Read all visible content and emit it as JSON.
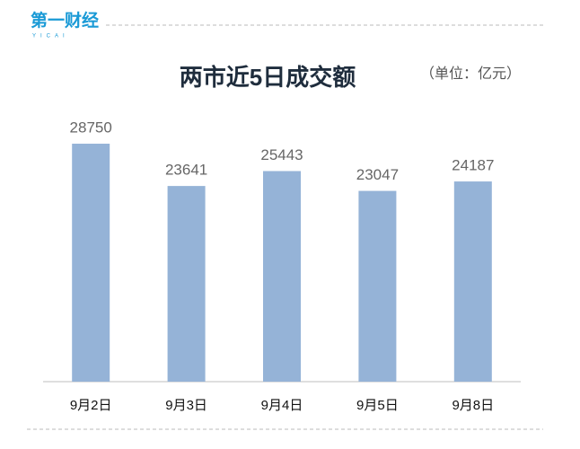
{
  "logo": "第一财经",
  "logo_sub": "YICAI",
  "chart_data": {
    "type": "bar",
    "title": "两市近5日成交额",
    "subtitle": "（单位：亿元）",
    "categories": [
      "9月2日",
      "9月3日",
      "9月4日",
      "9月5日",
      "9月8日"
    ],
    "values": [
      28750,
      23641,
      25443,
      23047,
      24187
    ],
    "color": "#95b3d7",
    "ylim": [
      0,
      30000
    ]
  }
}
